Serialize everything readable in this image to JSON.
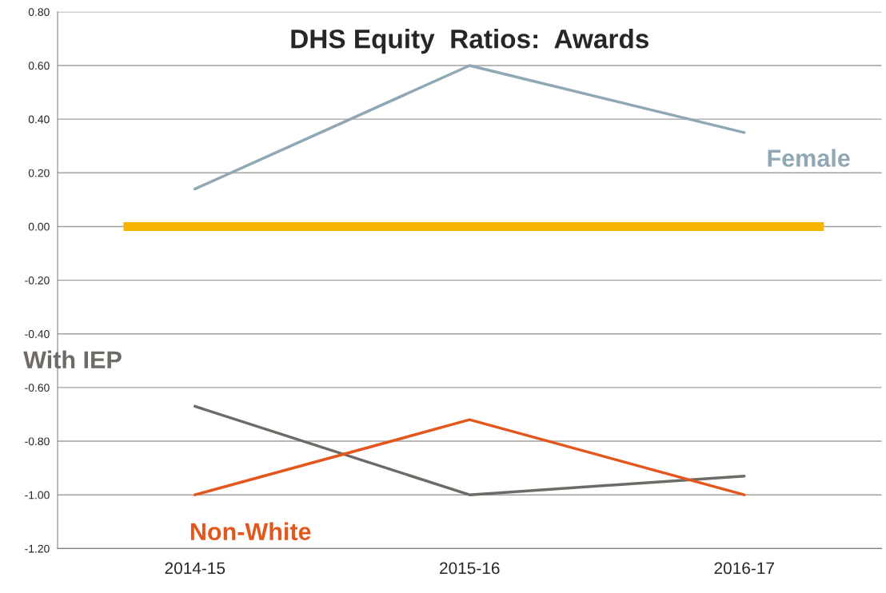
{
  "chart_data": {
    "type": "line",
    "title": "DHS Equity  Ratios:  Awards",
    "categories": [
      "2014-15",
      "2015-16",
      "2016-17"
    ],
    "series": [
      {
        "name": "Female",
        "color": "#8fa8b4",
        "values": [
          0.14,
          0.6,
          0.35
        ]
      },
      {
        "name": "With IEP",
        "color": "#6e6a66",
        "values": [
          -0.67,
          -1.0,
          -0.93
        ]
      },
      {
        "name": "Non-White",
        "color": "#e2571e",
        "values": [
          -1.0,
          -0.72,
          -1.0
        ]
      }
    ],
    "ylim": [
      -1.2,
      0.8
    ],
    "yticks": [
      {
        "value": -1.2,
        "label": "-1.20"
      },
      {
        "value": -1.0,
        "label": "-1.00"
      },
      {
        "value": -0.8,
        "label": "-0.80"
      },
      {
        "value": -0.6,
        "label": "-0.60"
      },
      {
        "value": -0.4,
        "label": "-0.40"
      },
      {
        "value": -0.2,
        "label": "-0.20"
      },
      {
        "value": 0,
        "label": "0.00"
      },
      {
        "value": 0.2,
        "label": "0.20"
      },
      {
        "value": 0.4,
        "label": "0.40"
      },
      {
        "value": 0.6,
        "label": "0.60"
      },
      {
        "value": 0.8,
        "label": "0.80"
      }
    ],
    "ref_lines": [
      {
        "axis": "y",
        "value": 0,
        "color": "#f5b400"
      }
    ],
    "grid": "y",
    "legend": false,
    "marker": "none",
    "line_style": "solid"
  }
}
